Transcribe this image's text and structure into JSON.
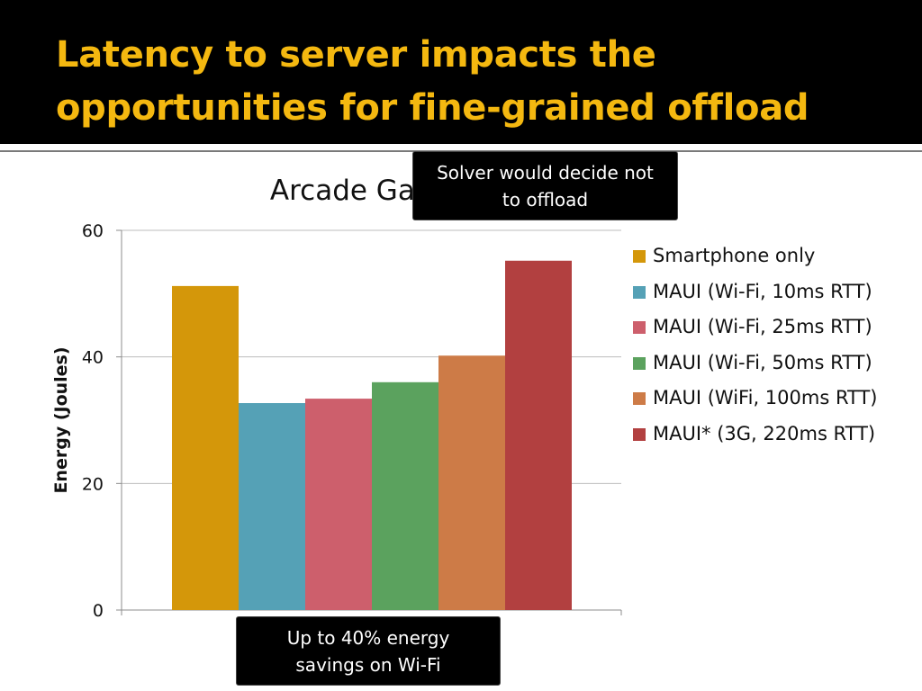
{
  "slide": {
    "title_line1": "Latency to server impacts the",
    "title_line2": "opportunities for fine-grained offload"
  },
  "callouts": {
    "top": [
      "Solver would decide not",
      "to offload"
    ],
    "bottom": [
      "Up to 40% energy",
      "savings on Wi-Fi"
    ]
  },
  "colors": {
    "header_bg": "#000000",
    "title": "#f4b810"
  },
  "chart_data": {
    "type": "bar",
    "title": "Arcade Game",
    "xlabel": "",
    "ylabel": "Energy (Joules)",
    "ylim": [
      0,
      60
    ],
    "yticks": [
      0,
      20,
      40,
      60
    ],
    "ytick_labels": [
      "0",
      "20",
      "40",
      "60"
    ],
    "grid": true,
    "legend_position": "right",
    "categories": [
      ""
    ],
    "series": [
      {
        "name": "Smartphone only",
        "values": [
          51.2
        ],
        "color": "#d4970a"
      },
      {
        "name": "MAUI (Wi-Fi, 10ms RTT)",
        "values": [
          32.7
        ],
        "color": "#55a1b6"
      },
      {
        "name": "MAUI (Wi-Fi, 25ms RTT)",
        "values": [
          33.4
        ],
        "color": "#cd5f6c"
      },
      {
        "name": "MAUI (Wi-Fi, 50ms RTT)",
        "values": [
          36.0
        ],
        "color": "#5ba25e"
      },
      {
        "name": "MAUI (WiFi, 100ms RTT)",
        "values": [
          40.2
        ],
        "color": "#cd7b47"
      },
      {
        "name": "MAUI* (3G, 220ms RTT)",
        "values": [
          55.2
        ],
        "color": "#b24040"
      }
    ]
  }
}
